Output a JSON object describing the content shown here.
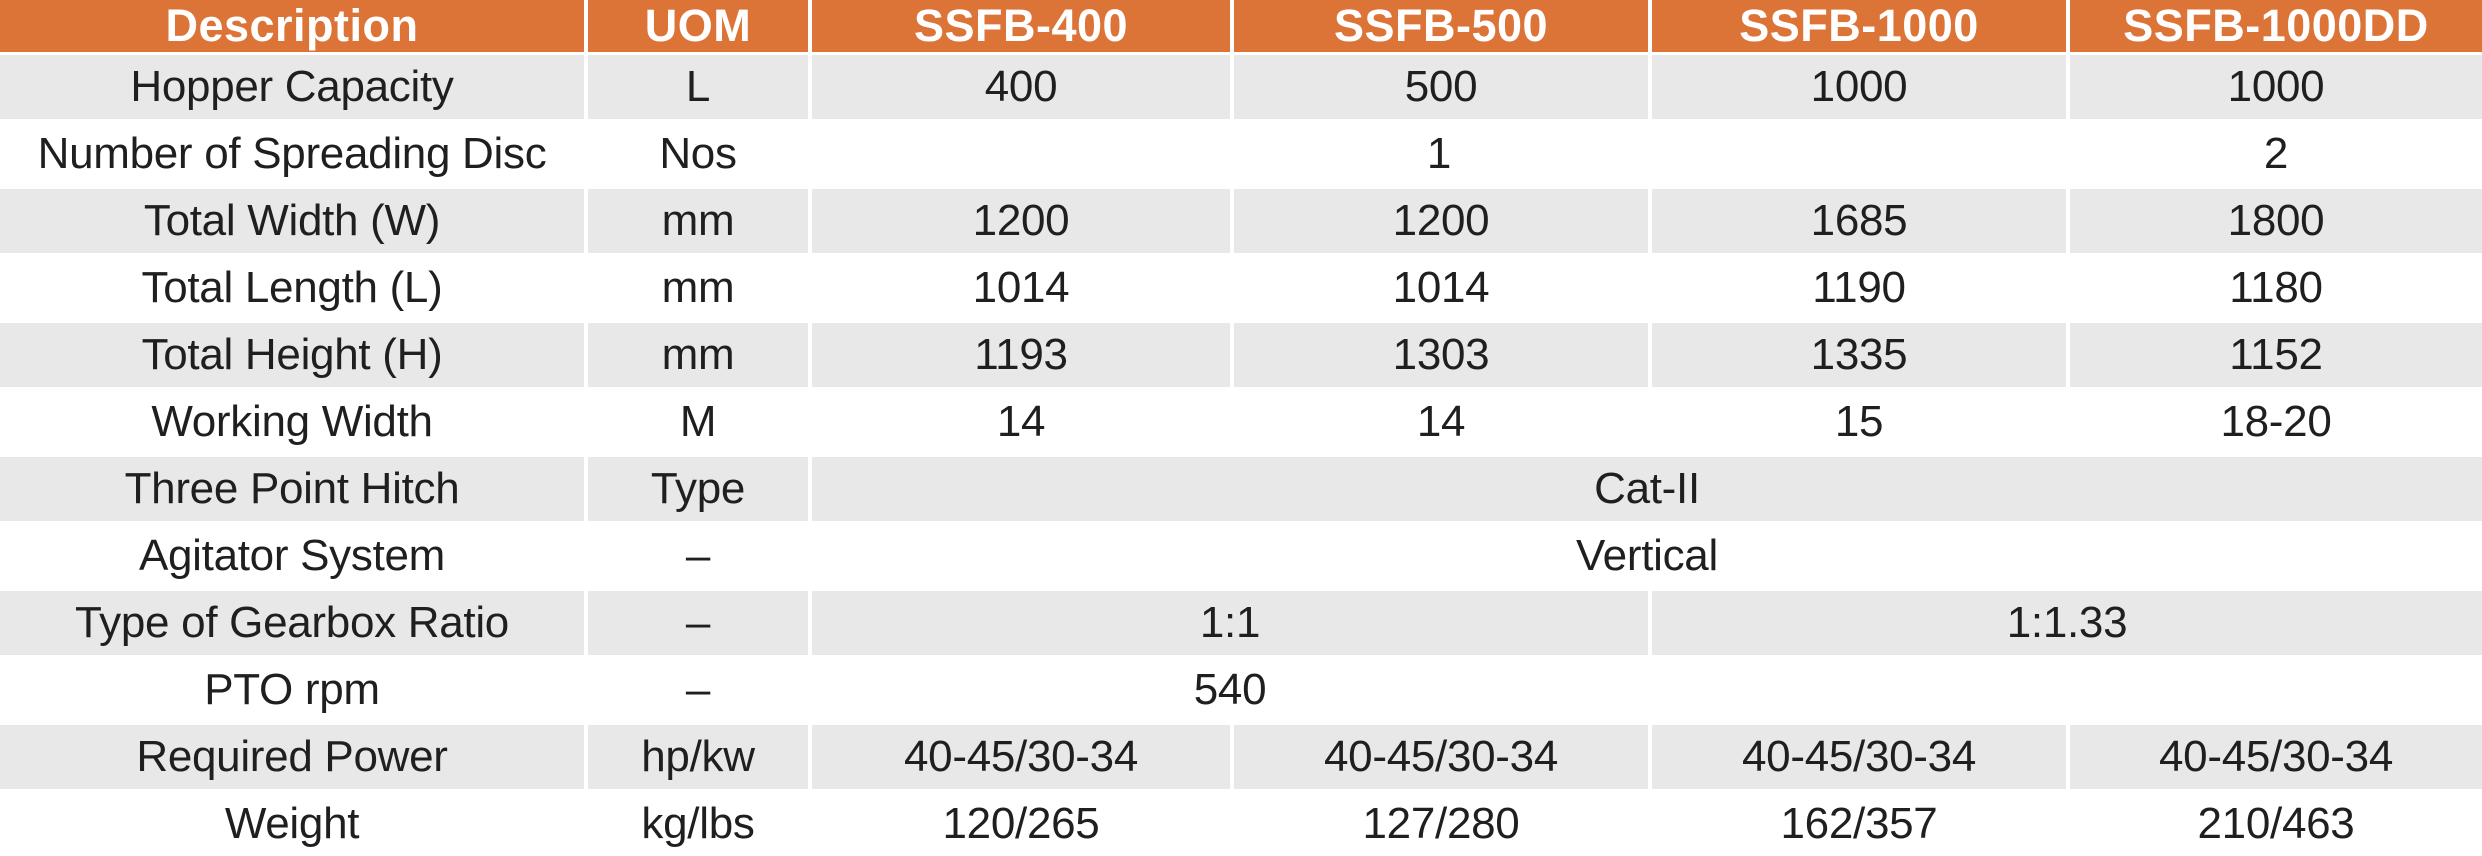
{
  "table": {
    "colors": {
      "header_bg": "#DD7437",
      "header_text": "#FFFFFF",
      "row_bg": "#FFFFFF",
      "row_alt_bg": "#E8E8E9",
      "body_text": "#1F1F1F",
      "grid_line": "#FFFFFF"
    },
    "columns": [
      "Description",
      "UOM",
      "SSFB-400",
      "SSFB-500",
      "SSFB-1000",
      "SSFB-1000DD"
    ],
    "rows": [
      {
        "description": "Hopper Capacity",
        "uom": "L",
        "cells": [
          {
            "text": "400",
            "span": 1
          },
          {
            "text": "500",
            "span": 1
          },
          {
            "text": "1000",
            "span": 1
          },
          {
            "text": "1000",
            "span": 1
          }
        ]
      },
      {
        "description": "Number of Spreading Disc",
        "uom": "Nos",
        "cells": [
          {
            "text": "1",
            "span": 3
          },
          {
            "text": "2",
            "span": 1
          }
        ]
      },
      {
        "description": "Total Width (W)",
        "uom": "mm",
        "cells": [
          {
            "text": "1200",
            "span": 1
          },
          {
            "text": "1200",
            "span": 1
          },
          {
            "text": "1685",
            "span": 1
          },
          {
            "text": "1800",
            "span": 1
          }
        ]
      },
      {
        "description": "Total Length (L)",
        "uom": "mm",
        "cells": [
          {
            "text": "1014",
            "span": 1
          },
          {
            "text": "1014",
            "span": 1
          },
          {
            "text": "1190",
            "span": 1
          },
          {
            "text": "1180",
            "span": 1
          }
        ]
      },
      {
        "description": "Total Height (H)",
        "uom": "mm",
        "cells": [
          {
            "text": "1193",
            "span": 1
          },
          {
            "text": "1303",
            "span": 1
          },
          {
            "text": "1335",
            "span": 1
          },
          {
            "text": "1152",
            "span": 1
          }
        ]
      },
      {
        "description": "Working Width",
        "uom": "M",
        "cells": [
          {
            "text": "14",
            "span": 1
          },
          {
            "text": "14",
            "span": 1
          },
          {
            "text": "15",
            "span": 1
          },
          {
            "text": "18-20",
            "span": 1
          }
        ]
      },
      {
        "description": "Three Point Hitch",
        "uom": "Type",
        "cells": [
          {
            "text": "Cat-II",
            "span": 4
          }
        ]
      },
      {
        "description": "Agitator System",
        "uom": "–",
        "cells": [
          {
            "text": "Vertical",
            "span": 4
          }
        ]
      },
      {
        "description": "Type of Gearbox Ratio",
        "uom": "–",
        "cells": [
          {
            "text": "1:1",
            "span": 2
          },
          {
            "text": "1:1.33",
            "span": 2
          }
        ]
      },
      {
        "description": "PTO rpm",
        "uom": "–",
        "cells": [
          {
            "text": "540",
            "span": 2
          },
          {
            "text": "",
            "span": 2
          }
        ]
      },
      {
        "description": "Required Power",
        "uom": "hp/kw",
        "cells": [
          {
            "text": "40-45/30-34",
            "span": 1
          },
          {
            "text": "40-45/30-34",
            "span": 1
          },
          {
            "text": "40-45/30-34",
            "span": 1
          },
          {
            "text": "40-45/30-34",
            "span": 1
          }
        ]
      },
      {
        "description": "Weight",
        "uom": "kg/lbs",
        "cells": [
          {
            "text": "120/265",
            "span": 1
          },
          {
            "text": "127/280",
            "span": 1
          },
          {
            "text": "162/357",
            "span": 1
          },
          {
            "text": "210/463",
            "span": 1
          }
        ]
      }
    ]
  }
}
